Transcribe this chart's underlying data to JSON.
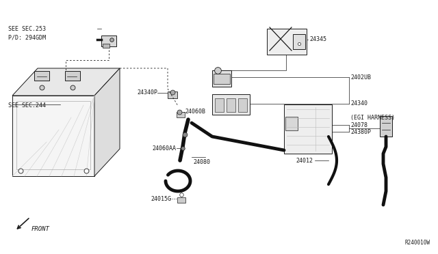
{
  "bg_color": "#ffffff",
  "line_color": "#1a1a1a",
  "labels": {
    "see_sec_253": "SEE SEC.253",
    "pd_294gdm": "P/D: 294GDM",
    "see_sec_244": "SEE SEC.244",
    "front": "FRONT",
    "24345": "24345",
    "2402ub": "2402UB",
    "24340": "24340",
    "24340p": "24340P",
    "24060b": "24060B",
    "24380p": "24380P",
    "24078": "24078",
    "egi_harness": "(EGI HARNESS)",
    "24060aa": "24060AA",
    "24080": "24080",
    "24012": "24012",
    "24015g": "24015G",
    "r240010w": "R240010W"
  },
  "fig_width": 6.4,
  "fig_height": 3.72,
  "dpi": 100
}
